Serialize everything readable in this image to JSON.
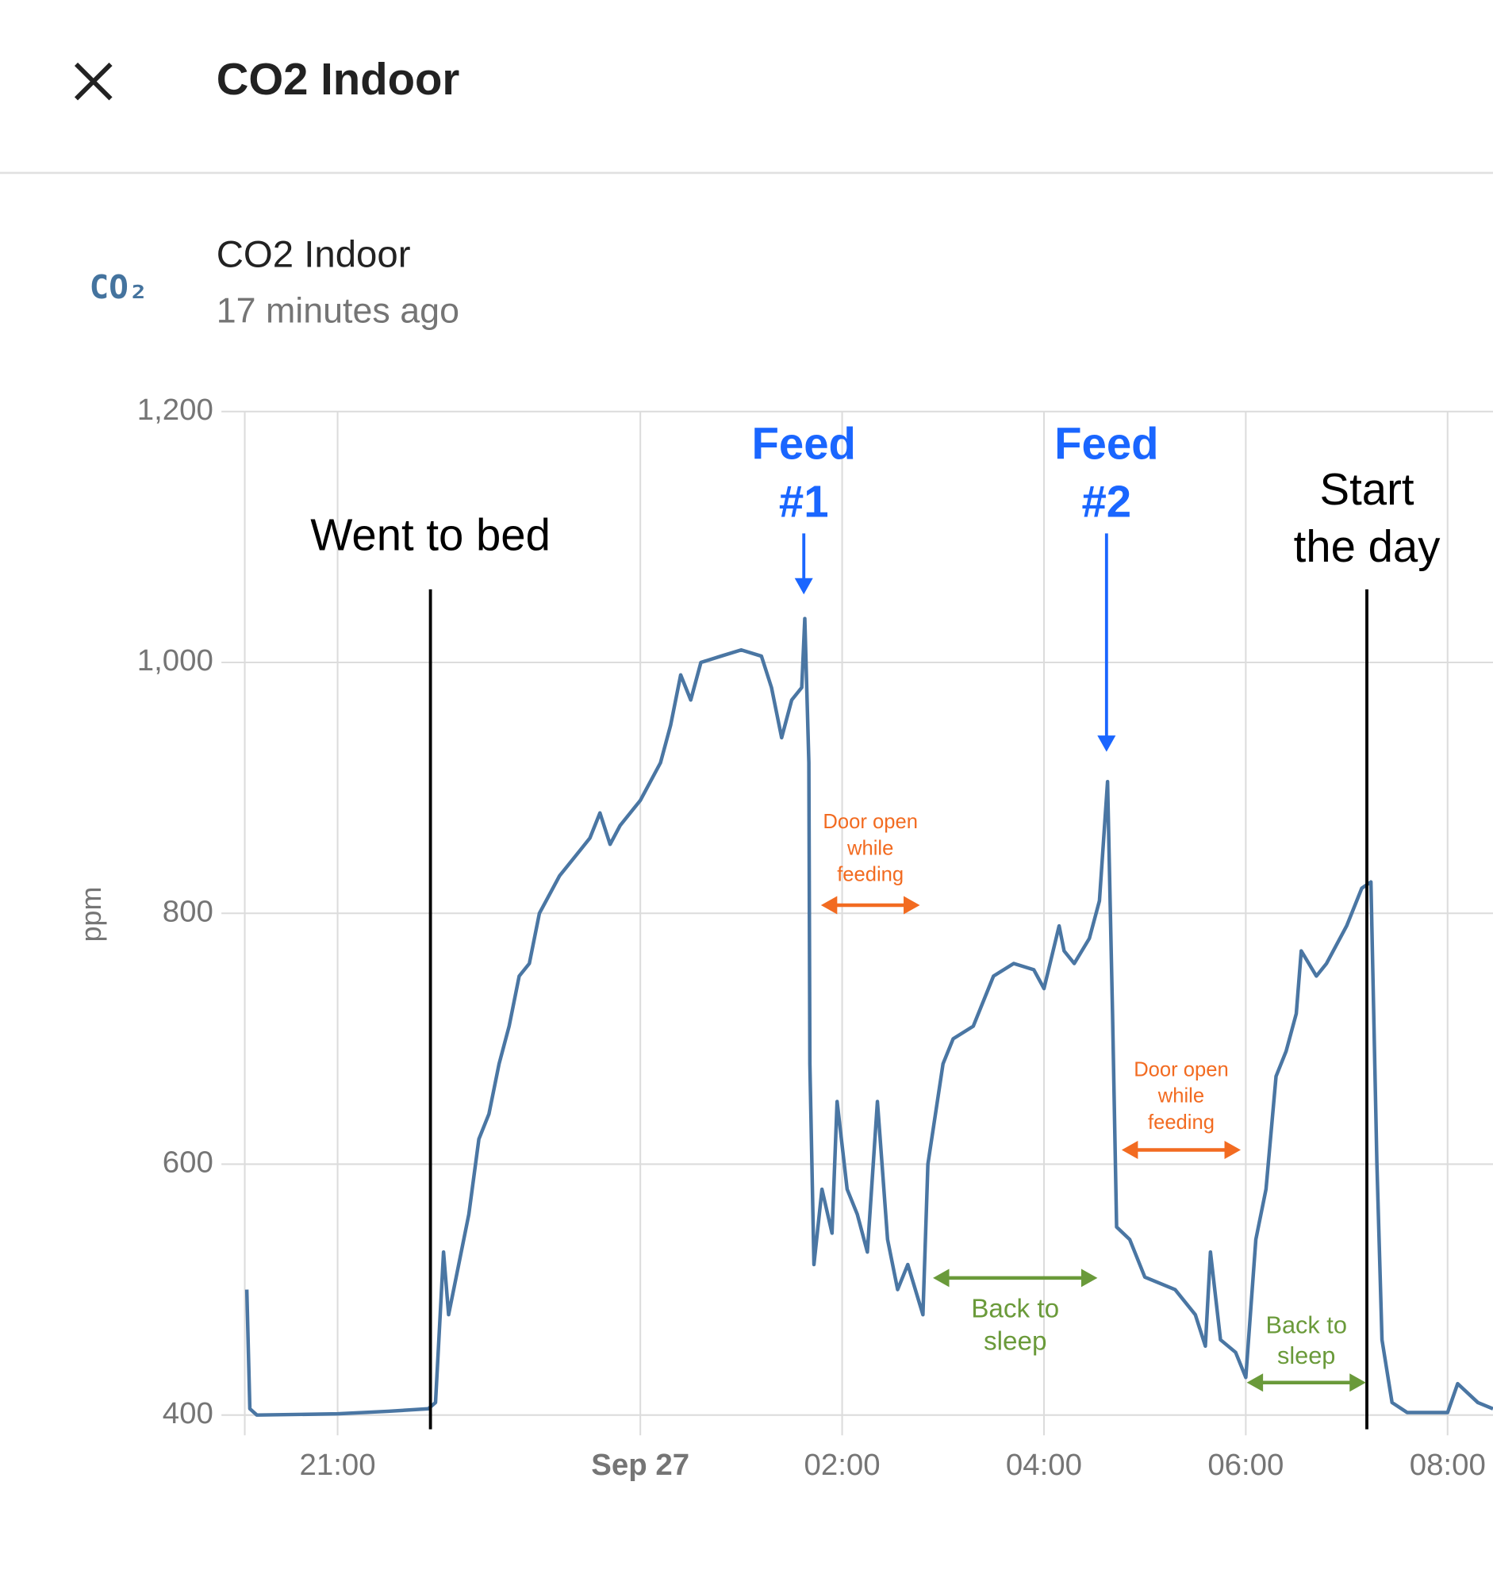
{
  "header": {
    "title": "CO2 Indoor"
  },
  "entity": {
    "icon": "CO₂",
    "name": "CO2 Indoor",
    "updated": "17 minutes ago"
  },
  "chart_data": {
    "type": "line",
    "ylabel": "ppm",
    "color": "#4a76a3",
    "grid": true,
    "ylim": [
      400,
      1200
    ],
    "yticks": [
      {
        "value": 400,
        "label": "400"
      },
      {
        "value": 600,
        "label": "600"
      },
      {
        "value": 800,
        "label": "800"
      },
      {
        "value": 1000,
        "label": "1,000"
      },
      {
        "value": 1200,
        "label": "1,200"
      }
    ],
    "xlim": [
      20.08,
      32.45
    ],
    "xticks": [
      {
        "value": 21,
        "label": "21:00"
      },
      {
        "value": 24,
        "label": "Sep 27",
        "bold": true
      },
      {
        "value": 26,
        "label": "02:00"
      },
      {
        "value": 28,
        "label": "04:00"
      },
      {
        "value": 30,
        "label": "06:00"
      },
      {
        "value": 32,
        "label": "08:00"
      }
    ],
    "x": [
      20.1,
      20.13,
      20.2,
      21.0,
      21.5,
      21.9,
      21.97,
      22.05,
      22.1,
      22.3,
      22.4,
      22.5,
      22.6,
      22.7,
      22.8,
      22.9,
      23.0,
      23.2,
      23.4,
      23.5,
      23.6,
      23.7,
      23.8,
      23.9,
      24.0,
      24.2,
      24.3,
      24.4,
      24.5,
      24.6,
      24.8,
      25.0,
      25.2,
      25.3,
      25.4,
      25.5,
      25.6,
      25.63,
      25.67,
      25.68,
      25.72,
      25.8,
      25.9,
      25.95,
      26.05,
      26.15,
      26.25,
      26.35,
      26.45,
      26.55,
      26.65,
      26.8,
      26.85,
      27.0,
      27.1,
      27.3,
      27.5,
      27.7,
      27.9,
      28.0,
      28.15,
      28.2,
      28.3,
      28.45,
      28.55,
      28.63,
      28.68,
      28.72,
      28.85,
      29.0,
      29.3,
      29.5,
      29.6,
      29.65,
      29.75,
      29.9,
      30.0,
      30.1,
      30.2,
      30.3,
      30.4,
      30.5,
      30.55,
      30.7,
      30.8,
      31.0,
      31.15,
      31.24,
      31.3,
      31.35,
      31.45,
      31.6,
      32.0,
      32.1,
      32.3,
      32.45
    ],
    "values": [
      500,
      405,
      400,
      401,
      403,
      405,
      410,
      530,
      480,
      560,
      620,
      640,
      680,
      710,
      750,
      760,
      800,
      830,
      850,
      860,
      880,
      855,
      870,
      880,
      890,
      920,
      950,
      990,
      970,
      1000,
      1005,
      1010,
      1005,
      980,
      940,
      970,
      980,
      1035,
      920,
      680,
      520,
      580,
      545,
      650,
      580,
      560,
      530,
      650,
      540,
      500,
      520,
      480,
      600,
      680,
      700,
      710,
      750,
      760,
      755,
      740,
      790,
      770,
      760,
      780,
      810,
      905,
      720,
      550,
      540,
      510,
      500,
      480,
      455,
      530,
      460,
      450,
      430,
      540,
      580,
      670,
      690,
      720,
      770,
      750,
      760,
      790,
      820,
      825,
      600,
      460,
      410,
      402,
      402,
      425,
      410,
      405
    ],
    "annotations": [
      {
        "x": 21.92,
        "text": [
          "Went to bed"
        ],
        "color": "#000000"
      },
      {
        "x": 25.62,
        "text": [
          "Feed",
          "#1"
        ],
        "color": "#1a66ff"
      },
      {
        "x": 28.62,
        "text": [
          "Feed",
          "#2"
        ],
        "color": "#1a66ff"
      },
      {
        "x": 31.2,
        "text": [
          "Start",
          "the day"
        ],
        "color": "#000000"
      },
      {
        "x": [
          25.79,
          26.77
        ],
        "text": [
          "Door open",
          "while",
          "feeding"
        ],
        "color": "#f26b21"
      },
      {
        "x": [
          28.77,
          29.95
        ],
        "text": [
          "Door open",
          "while",
          "feeding"
        ],
        "color": "#f26b21"
      },
      {
        "x": [
          26.9,
          28.53
        ],
        "text": [
          "Back to",
          "sleep"
        ],
        "color": "#6a9a3a"
      },
      {
        "x": [
          30.01,
          31.19
        ],
        "text": [
          "Back to",
          "sleep"
        ],
        "color": "#6a9a3a"
      }
    ]
  }
}
